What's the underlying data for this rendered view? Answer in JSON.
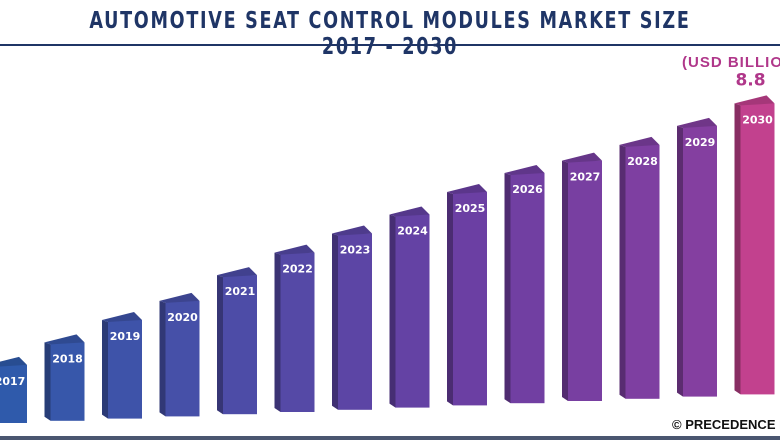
{
  "chart_data": {
    "type": "bar",
    "title": "AUTOMOTIVE SEAT CONTROL MODULES MARKET SIZE 2017 - 2030",
    "unit_label": "(USD BILLION)",
    "categories": [
      "2017",
      "2018",
      "2019",
      "2020",
      "2021",
      "2022",
      "2023",
      "2024",
      "2025",
      "2026",
      "2027",
      "2028",
      "2029",
      "2030"
    ],
    "values": [
      1.9,
      2.5,
      3.1,
      3.6,
      4.3,
      4.9,
      5.4,
      5.9,
      6.5,
      7.0,
      7.3,
      7.7,
      8.2,
      8.8
    ],
    "data_labels": {
      "2030": "8.8"
    },
    "colors": {
      "start": "#2f5aab",
      "mid": "#6a3fa3",
      "end": "#c2418e",
      "title": "#1f3566"
    },
    "grid": false
  },
  "credit": "© PRECEDENCE RESEARCH"
}
